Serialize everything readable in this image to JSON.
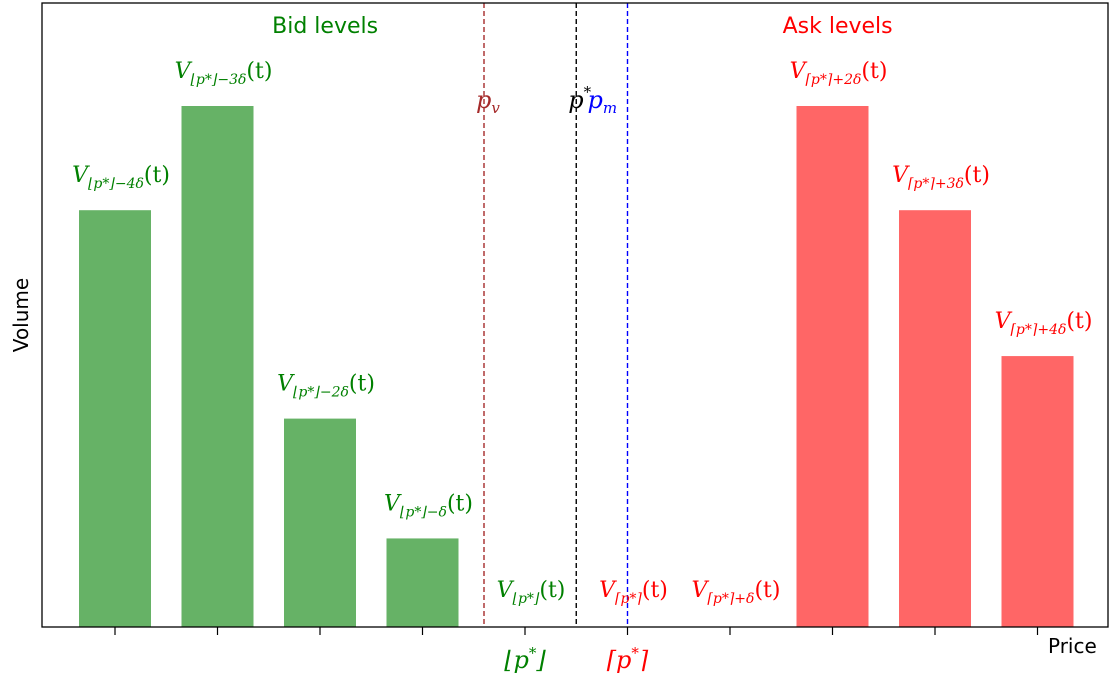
{
  "chart_data": {
    "type": "bar",
    "xlabel": "Price",
    "ylabel": "Volume",
    "ylim": [
      0,
      10
    ],
    "grid": false,
    "tick_positions": [
      1,
      2,
      3,
      4,
      5,
      6,
      7,
      8,
      9,
      10
    ],
    "tick_labels": [
      {
        "x": 5,
        "base": "⌊p",
        "sup": "*",
        "end": "⌋",
        "color": "#008000"
      },
      {
        "x": 6,
        "base": "⌈p",
        "sup": "*",
        "end": "⌉",
        "color": "#ff0000"
      }
    ],
    "group_labels": [
      {
        "text": "Bid levels",
        "x": 3.05,
        "color": "#008000"
      },
      {
        "text": "Ask levels",
        "x": 8.05,
        "color": "#ff0000"
      }
    ],
    "vlines": [
      {
        "x": 4.6,
        "color": "#a52a2a",
        "label_main": "p",
        "label_sub": "v"
      },
      {
        "x": 5.5,
        "color": "#000000",
        "label_main": "p",
        "label_sup": "*"
      },
      {
        "x": 6.0,
        "color": "#0000ff",
        "label_main": "p",
        "label_sub": "m"
      }
    ],
    "series": [
      {
        "name": "Bid levels",
        "color": "#66b266",
        "text_color": "#008000",
        "bars": [
          {
            "x": 1,
            "value": 8.0,
            "label": {
              "bracket": "⌊p*⌋",
              "offset": "−4δ"
            }
          },
          {
            "x": 2,
            "value": 10.0,
            "label": {
              "bracket": "⌊p*⌋",
              "offset": "−3δ"
            }
          },
          {
            "x": 3,
            "value": 4.0,
            "label": {
              "bracket": "⌊p*⌋",
              "offset": "−2δ"
            }
          },
          {
            "x": 4,
            "value": 1.7,
            "label": {
              "bracket": "⌊p*⌋",
              "offset": "−δ"
            }
          },
          {
            "x": 5,
            "value": 0.0,
            "label": {
              "bracket": "⌊p*⌋",
              "offset": ""
            }
          }
        ]
      },
      {
        "name": "Ask levels",
        "color": "#ff6666",
        "text_color": "#ff0000",
        "bars": [
          {
            "x": 6,
            "value": 0.0,
            "label": {
              "bracket": "⌈p*⌉",
              "offset": ""
            }
          },
          {
            "x": 7,
            "value": 0.0,
            "label": {
              "bracket": "⌈p*⌉",
              "offset": "+δ"
            }
          },
          {
            "x": 8,
            "value": 10.0,
            "label": {
              "bracket": "⌈p*⌉",
              "offset": "+2δ"
            }
          },
          {
            "x": 9,
            "value": 8.0,
            "label": {
              "bracket": "⌈p*⌉",
              "offset": "+3δ"
            }
          },
          {
            "x": 10,
            "value": 5.2,
            "label": {
              "bracket": "⌈p*⌉",
              "offset": "+4δ"
            }
          }
        ]
      }
    ]
  }
}
